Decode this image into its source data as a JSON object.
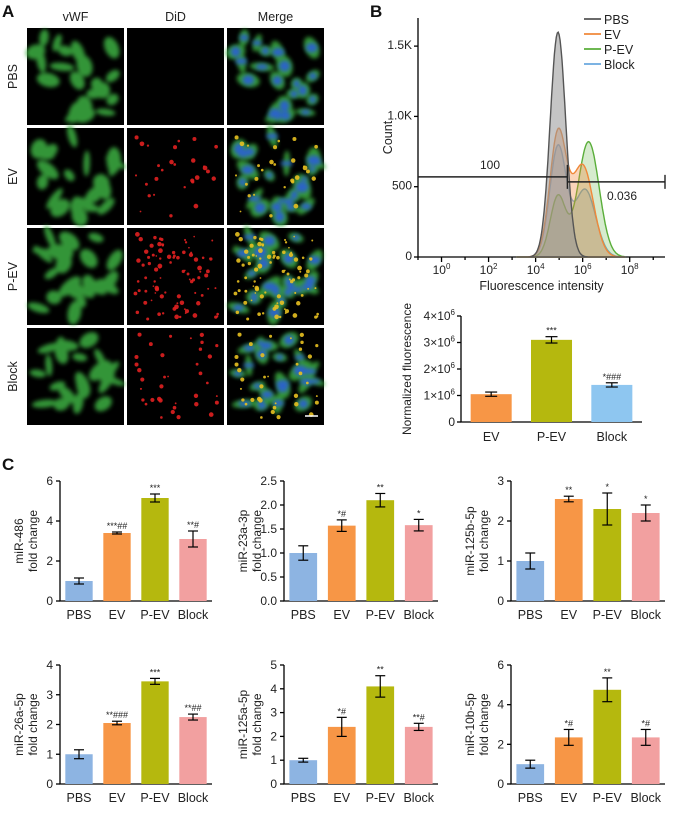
{
  "panel_labels": {
    "a": "A",
    "b": "B",
    "c": "C"
  },
  "panel_a": {
    "columns": [
      {
        "label": "vWF",
        "color": "#19a54a"
      },
      {
        "label": "DiD",
        "color": "#e0302c"
      },
      {
        "label": "Merge",
        "color": "#111111"
      }
    ],
    "rows": [
      "PBS",
      "EV",
      "P-EV",
      "Block"
    ]
  },
  "colors": {
    "PBS": "#8db4e2",
    "EV": "#f79646",
    "P-EV": "#b5b80e",
    "Block": "#f2a0a0",
    "Block_b": "#8ec6f0"
  },
  "chart_data": [
    {
      "id": "histogram",
      "type": "area",
      "title": "",
      "xlabel": "Fluorescence intensity",
      "ylabel": "Count",
      "x_scale": "log10",
      "xlim_log10": [
        -1,
        9.5
      ],
      "ylim": [
        0,
        1700
      ],
      "x_ticks": [
        {
          "label": "10",
          "sup": "0",
          "v": 0
        },
        {
          "label": "10",
          "sup": "2",
          "v": 2
        },
        {
          "label": "10",
          "sup": "4",
          "v": 4
        },
        {
          "label": "10",
          "sup": "6",
          "v": 6
        },
        {
          "label": "10",
          "sup": "8",
          "v": 8
        }
      ],
      "y_ticks": [
        {
          "label": "0",
          "v": 0
        },
        {
          "label": "500",
          "v": 500
        },
        {
          "label": "1.0K",
          "v": 1000
        },
        {
          "label": "1.5K",
          "v": 1500
        }
      ],
      "legend": [
        "PBS",
        "EV",
        "P-EV",
        "Block"
      ],
      "legend_colors": [
        "#555555",
        "#f0883a",
        "#5aae3a",
        "#6aa8df"
      ],
      "gate": {
        "left_label": "100",
        "right_label": "0.036",
        "split_log10": 5.35,
        "level": 570
      },
      "series": [
        {
          "name": "PBS",
          "peak_log10": 4.95,
          "peak": 1600,
          "sd": 0.33,
          "second_mu": 5.85,
          "second_height": 0
        },
        {
          "name": "EV",
          "peak_log10": 4.95,
          "peak": 870,
          "sd": 0.35,
          "second_mu": 6.0,
          "second_height": 650
        },
        {
          "name": "P-EV",
          "peak_log10": 4.95,
          "peak": 430,
          "sd": 0.33,
          "second_mu": 6.25,
          "second_height": 820
        },
        {
          "name": "Block",
          "peak_log10": 4.95,
          "peak": 780,
          "sd": 0.35,
          "second_mu": 6.1,
          "second_height": 480
        }
      ]
    },
    {
      "id": "normalized-fluorescence",
      "type": "bar",
      "ylabel": "Normalized fluorescence",
      "categories": [
        "EV",
        "P-EV",
        "Block"
      ],
      "values": [
        1.05,
        3.1,
        1.4
      ],
      "errors": [
        0.08,
        0.12,
        0.08
      ],
      "value_unit": "x10^6",
      "ylim": [
        0,
        4
      ],
      "y_ticks": [
        {
          "label": "0",
          "v": 0
        },
        {
          "label": "1×10",
          "sup": "6",
          "v": 1
        },
        {
          "label": "2×10",
          "sup": "6",
          "v": 2
        },
        {
          "label": "3×10",
          "sup": "6",
          "v": 3
        },
        {
          "label": "4×10",
          "sup": "6",
          "v": 4
        }
      ],
      "annotations": [
        "",
        "***",
        "*###"
      ],
      "colors": [
        "#f79646",
        "#b5b80e",
        "#8ec6f0"
      ]
    },
    {
      "id": "mir-486",
      "type": "bar",
      "ylabel_lines": [
        "miR-486",
        "fold change"
      ],
      "categories": [
        "PBS",
        "EV",
        "P-EV",
        "Block"
      ],
      "values": [
        1.0,
        3.4,
        5.15,
        3.1
      ],
      "errors": [
        0.15,
        0.05,
        0.2,
        0.4
      ],
      "ylim": [
        0,
        6
      ],
      "y_ticks": [
        0,
        2,
        4,
        6
      ],
      "annotations": [
        "",
        "***##",
        "***",
        "**#"
      ]
    },
    {
      "id": "mir-23a-3p",
      "type": "bar",
      "ylabel_lines": [
        "miR-23a-3p",
        "fold change"
      ],
      "categories": [
        "PBS",
        "EV",
        "P-EV",
        "Block"
      ],
      "values": [
        1.0,
        1.57,
        2.1,
        1.58
      ],
      "errors": [
        0.15,
        0.12,
        0.14,
        0.12
      ],
      "ylim": [
        0,
        2.5
      ],
      "y_ticks": [
        0.0,
        0.5,
        1.0,
        1.5,
        2.0,
        2.5
      ],
      "annotations": [
        "",
        "*#",
        "**",
        "*"
      ]
    },
    {
      "id": "mir-125b-5p",
      "type": "bar",
      "ylabel_lines": [
        "miR-125b-5p",
        "fold change"
      ],
      "categories": [
        "PBS",
        "EV",
        "P-EV",
        "Block"
      ],
      "values": [
        1.0,
        2.55,
        2.3,
        2.2
      ],
      "errors": [
        0.2,
        0.07,
        0.4,
        0.2
      ],
      "ylim": [
        0,
        3
      ],
      "y_ticks": [
        0,
        1,
        2,
        3
      ],
      "annotations": [
        "",
        "**",
        "*",
        "*"
      ]
    },
    {
      "id": "mir-26a-5p",
      "type": "bar",
      "ylabel_lines": [
        "miR-26a-5p",
        "fold change"
      ],
      "categories": [
        "PBS",
        "EV",
        "P-EV",
        "Block"
      ],
      "values": [
        1.0,
        2.05,
        3.45,
        2.25
      ],
      "errors": [
        0.15,
        0.06,
        0.1,
        0.1
      ],
      "ylim": [
        0,
        4
      ],
      "y_ticks": [
        0,
        1,
        2,
        3,
        4
      ],
      "annotations": [
        "",
        "**###",
        "***",
        "**##"
      ]
    },
    {
      "id": "mir-125a-5p",
      "type": "bar",
      "ylabel_lines": [
        "miR-125a-5p",
        "fold change"
      ],
      "categories": [
        "PBS",
        "EV",
        "P-EV",
        "Block"
      ],
      "values": [
        1.0,
        2.4,
        4.1,
        2.4
      ],
      "errors": [
        0.08,
        0.4,
        0.45,
        0.15
      ],
      "ylim": [
        0,
        5
      ],
      "y_ticks": [
        0,
        1,
        2,
        3,
        4,
        5
      ],
      "annotations": [
        "",
        "*#",
        "**",
        "**#"
      ]
    },
    {
      "id": "mir-10b-5p",
      "type": "bar",
      "ylabel_lines": [
        "miR-10b-5p",
        "fold change"
      ],
      "categories": [
        "PBS",
        "EV",
        "P-EV",
        "Block"
      ],
      "values": [
        1.0,
        2.35,
        4.75,
        2.35
      ],
      "errors": [
        0.2,
        0.4,
        0.6,
        0.4
      ],
      "ylim": [
        0,
        6
      ],
      "y_ticks": [
        0,
        2,
        4,
        6
      ],
      "annotations": [
        "",
        "*#",
        "**",
        "*#"
      ]
    }
  ]
}
